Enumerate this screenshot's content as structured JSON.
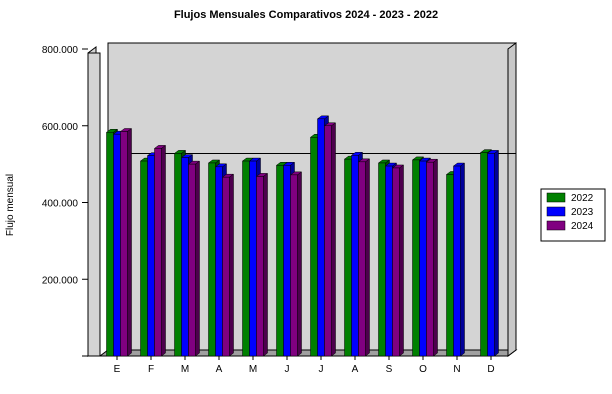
{
  "chart_data": {
    "type": "bar",
    "title": "Flujos Mensuales Comparativos 2024 - 2023 - 2022",
    "xlabel": "",
    "ylabel": "Flujo mensual",
    "ylim": [
      0,
      800000
    ],
    "yticks": [
      0,
      200000,
      400000,
      600000,
      800000
    ],
    "ytick_labels": [
      "",
      "200.000",
      "400.000",
      "600.000",
      "800.000"
    ],
    "categories": [
      "E",
      "F",
      "M",
      "A",
      "M",
      "J",
      "J",
      "A",
      "S",
      "O",
      "N",
      "D"
    ],
    "series": [
      {
        "name": "2022",
        "color": "#008000",
        "values": [
          583000,
          508000,
          528000,
          503000,
          508000,
          497000,
          570000,
          513000,
          503000,
          511000,
          473000,
          530000
        ]
      },
      {
        "name": "2023",
        "color": "#0000ff",
        "values": [
          578000,
          522000,
          517000,
          493000,
          508000,
          497000,
          618000,
          523000,
          495000,
          508000,
          495000,
          528000
        ]
      },
      {
        "name": "2024",
        "color": "#800080",
        "values": [
          585000,
          541000,
          500000,
          466000,
          468000,
          472000,
          600000,
          506000,
          490000,
          505000,
          null,
          null
        ]
      }
    ],
    "reference_line": 512000,
    "grid": false,
    "legend_position": "right",
    "style": "3d",
    "plot_background": "#d4d4d4"
  }
}
